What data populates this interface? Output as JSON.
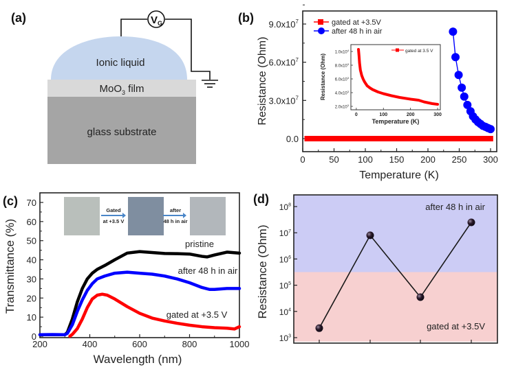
{
  "panels": {
    "a": {
      "label": "(a)",
      "voltage_source": "V",
      "voltage_source_subscript": "G",
      "ionic_liquid_label": "Ionic liquid",
      "film_label_main": "MoO",
      "film_label_sub": "3",
      "film_label_tail": " film",
      "substrate_label": "glass substrate",
      "colors": {
        "ionic_liquid": "#c5d6ee",
        "film": "#d9d9d9",
        "substrate": "#a5a5a5",
        "wire": "#111111"
      }
    },
    "b": {
      "label": "(b)"
    },
    "c": {
      "label": "(c)"
    },
    "d": {
      "label": "(d)"
    }
  },
  "chart_data": [
    {
      "id": "b",
      "type": "scatter",
      "title": "",
      "xlabel": "Temperature (K)",
      "ylabel": "Resistance (Ohm)",
      "xlim": [
        0,
        305
      ],
      "ylim": [
        -9000000,
        102000000
      ],
      "xticks": [
        0,
        50,
        100,
        150,
        200,
        250,
        300
      ],
      "xtick_labels": [
        "0",
        "50",
        "100",
        "150",
        "200",
        "250",
        "300"
      ],
      "yticks": [
        0,
        30000000,
        60000000,
        90000000
      ],
      "ytick_labels": [
        {
          "base": "0.0",
          "exp": ""
        },
        {
          "base": "3.0x10",
          "exp": "7"
        },
        {
          "base": "6.0x10",
          "exp": "7"
        },
        {
          "base": "9.0x10",
          "exp": "7"
        }
      ],
      "legend_position": "top-left",
      "series": [
        {
          "name": "gated at +3.5V",
          "color": "#ff0000",
          "marker": "square",
          "x_range": [
            5,
            302
          ],
          "value": 0
        },
        {
          "name": "after 48 h in air",
          "color": "#0000ff",
          "marker": "circle",
          "x": [
            240,
            244,
            249,
            254,
            258,
            263,
            268,
            272,
            276,
            280,
            284,
            288,
            292,
            296,
            300
          ],
          "y": [
            84000000,
            64000000,
            50000000,
            40000000,
            33000000,
            26500000,
            21500000,
            17500000,
            15000000,
            13000000,
            11500000,
            10000000,
            9200000,
            8300000,
            7500000
          ]
        }
      ],
      "inset": {
        "type": "line",
        "xlabel": "Temperature (K)",
        "ylabel": "Resistance (Ohm)",
        "xlim": [
          -20,
          310
        ],
        "ylim": [
          1500,
          11000
        ],
        "xticks": [
          0,
          100,
          200,
          300
        ],
        "xtick_labels": [
          "0",
          "100",
          "200",
          "300"
        ],
        "yticks": [
          2000,
          4000,
          6000,
          8000,
          10000
        ],
        "ytick_labels": [
          {
            "base": "2.0x10",
            "exp": "3"
          },
          {
            "base": "4.0x10",
            "exp": "3"
          },
          {
            "base": "6.0x10",
            "exp": "3"
          },
          {
            "base": "8.0x10",
            "exp": "3"
          },
          {
            "base": "1.0x10",
            "exp": "4"
          }
        ],
        "series": [
          {
            "name": "gated at 3.5 V",
            "color": "#ff0000",
            "x": [
              8,
              10,
              12,
              15,
              20,
              25,
              30,
              40,
              50,
              60,
              80,
              100,
              130,
              160,
              200,
              230,
              250,
              280,
              300
            ],
            "y": [
              10300,
              9400,
              8300,
              7300,
              6500,
              6000,
              5600,
              5000,
              4700,
              4450,
              4100,
              3850,
              3550,
              3300,
              3050,
              2900,
              2650,
              2400,
              2300
            ]
          }
        ]
      }
    },
    {
      "id": "c",
      "type": "line",
      "title": "",
      "xlabel": "Wavelength (nm)",
      "ylabel": "Transmittance (%)",
      "xlim": [
        200,
        1000
      ],
      "ylim": [
        0,
        75
      ],
      "xticks": [
        200,
        400,
        600,
        800,
        1000
      ],
      "xtick_labels": [
        "200",
        "400",
        "600",
        "800",
        "1000"
      ],
      "yticks": [
        0,
        10,
        20,
        30,
        40,
        50,
        60,
        70
      ],
      "ytick_labels": [
        "0",
        "10",
        "20",
        "30",
        "40",
        "50",
        "60",
        "70"
      ],
      "series": [
        {
          "name": "pristine",
          "color": "#000000",
          "x": [
            200,
            250,
            300,
            310,
            330,
            350,
            370,
            390,
            410,
            430,
            460,
            500,
            550,
            600,
            650,
            700,
            750,
            800,
            850,
            870,
            900,
            950,
            1000
          ],
          "y": [
            0.8,
            0.8,
            0.8,
            2,
            9,
            18,
            25,
            30,
            33,
            35,
            37,
            40,
            43.5,
            44.3,
            43.8,
            43.3,
            43.2,
            43,
            41.8,
            41.5,
            42.5,
            44,
            43.5
          ]
        },
        {
          "name": "after 48 h in air",
          "color": "#0000ff",
          "x": [
            200,
            250,
            300,
            310,
            330,
            350,
            370,
            390,
            410,
            430,
            460,
            500,
            550,
            600,
            650,
            700,
            750,
            800,
            850,
            880,
            900,
            950,
            1000
          ],
          "y": [
            0.8,
            0.9,
            0.8,
            1.5,
            6,
            13,
            19,
            24,
            27.5,
            30,
            31.5,
            33,
            33.5,
            33,
            32.5,
            31.5,
            30,
            28,
            25.5,
            24.5,
            24.5,
            25,
            25
          ]
        },
        {
          "name": "gated at +3.5 V",
          "color": "#ff0000",
          "x": [
            320,
            330,
            350,
            370,
            390,
            410,
            430,
            450,
            470,
            500,
            550,
            600,
            650,
            700,
            750,
            800,
            850,
            900,
            950,
            980,
            1000
          ],
          "y": [
            0,
            1,
            4,
            9,
            15,
            19.5,
            21.5,
            22,
            21.5,
            19.5,
            15.5,
            12,
            9.5,
            8,
            6.8,
            5.8,
            5,
            4.5,
            4.2,
            3.8,
            5
          ]
        }
      ],
      "curve_labels": [
        "pristine",
        "after 48 h in air",
        "gated at +3.5 V"
      ],
      "inset_photos": {
        "step1_label_line1": "Gated",
        "step1_label_line2": "at +3.5 V",
        "step2_label_line1": "after",
        "step2_label_line2": "48 h in air",
        "photo_colors": [
          "#b9bfbb",
          "#7f8ea0",
          "#b2b7bb"
        ]
      }
    },
    {
      "id": "d",
      "type": "line",
      "title": "",
      "xlabel": "",
      "ylabel": "Resistance (Ohm)",
      "yscale": "log",
      "ylim_exp": [
        2.85,
        8.5
      ],
      "yticks_exp": [
        3,
        4,
        5,
        6,
        7,
        8
      ],
      "ytick_labels": [
        {
          "base": "10",
          "exp": "3"
        },
        {
          "base": "10",
          "exp": "4"
        },
        {
          "base": "10",
          "exp": "5"
        },
        {
          "base": "10",
          "exp": "6"
        },
        {
          "base": "10",
          "exp": "7"
        },
        {
          "base": "10",
          "exp": "8"
        }
      ],
      "x": [
        1,
        2,
        3,
        4
      ],
      "xlim": [
        0.5,
        4.5
      ],
      "y": [
        2300,
        8000000,
        35000,
        25000000
      ],
      "point_color": "#2a1a2a",
      "line_color": "#1a1a1a",
      "regions": [
        {
          "name": "after 48 h in air",
          "from_exp": 5.5,
          "to_exp": 8.5,
          "color": "#ccccf5"
        },
        {
          "name": "gated at +3.5V",
          "from_exp": 2.85,
          "to_exp": 5.5,
          "color": "#f7d0d0"
        }
      ]
    }
  ]
}
